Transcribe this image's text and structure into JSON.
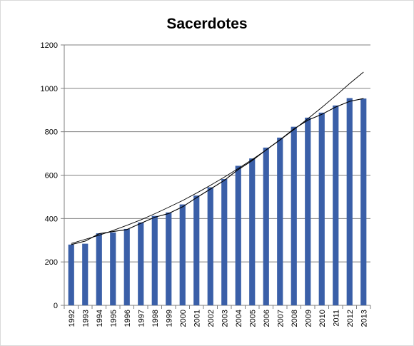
{
  "chart_data": {
    "type": "bar",
    "title": "Sacerdotes",
    "xlabel": "",
    "ylabel": "",
    "categories": [
      "1992",
      "1993",
      "1994",
      "1995",
      "1996",
      "1997",
      "1998",
      "1999",
      "2000",
      "2001",
      "2002",
      "2003",
      "2004",
      "2005",
      "2006",
      "2007",
      "2008",
      "2009",
      "2010",
      "2011",
      "2012",
      "2013"
    ],
    "series": [
      {
        "values": [
          280,
          284,
          332,
          336,
          352,
          382,
          412,
          428,
          465,
          506,
          544,
          582,
          643,
          677,
          727,
          773,
          823,
          865,
          888,
          921,
          955,
          953
        ],
        "color": "#3a5fa8",
        "mark": "bar"
      },
      {
        "values": [
          280,
          296,
          330,
          340,
          349,
          378,
          406,
          423,
          454,
          496,
          536,
          576,
          626,
          667,
          716,
          763,
          813,
          853,
          880,
          914,
          940,
          953
        ],
        "color": "#000000",
        "mark": "line"
      },
      {
        "values": [
          285,
          304,
          323,
          345,
          369,
          394,
          422,
          452,
          483,
          517,
          553,
          591,
          631,
          672,
          716,
          762,
          810,
          860,
          912,
          966,
          1022,
          1075
        ],
        "color": "#000000",
        "mark": "trendline"
      }
    ],
    "ylim": [
      0,
      1200
    ],
    "yticks": [
      0,
      200,
      400,
      600,
      800,
      1000,
      1200
    ],
    "grid": true,
    "legend": "none"
  }
}
